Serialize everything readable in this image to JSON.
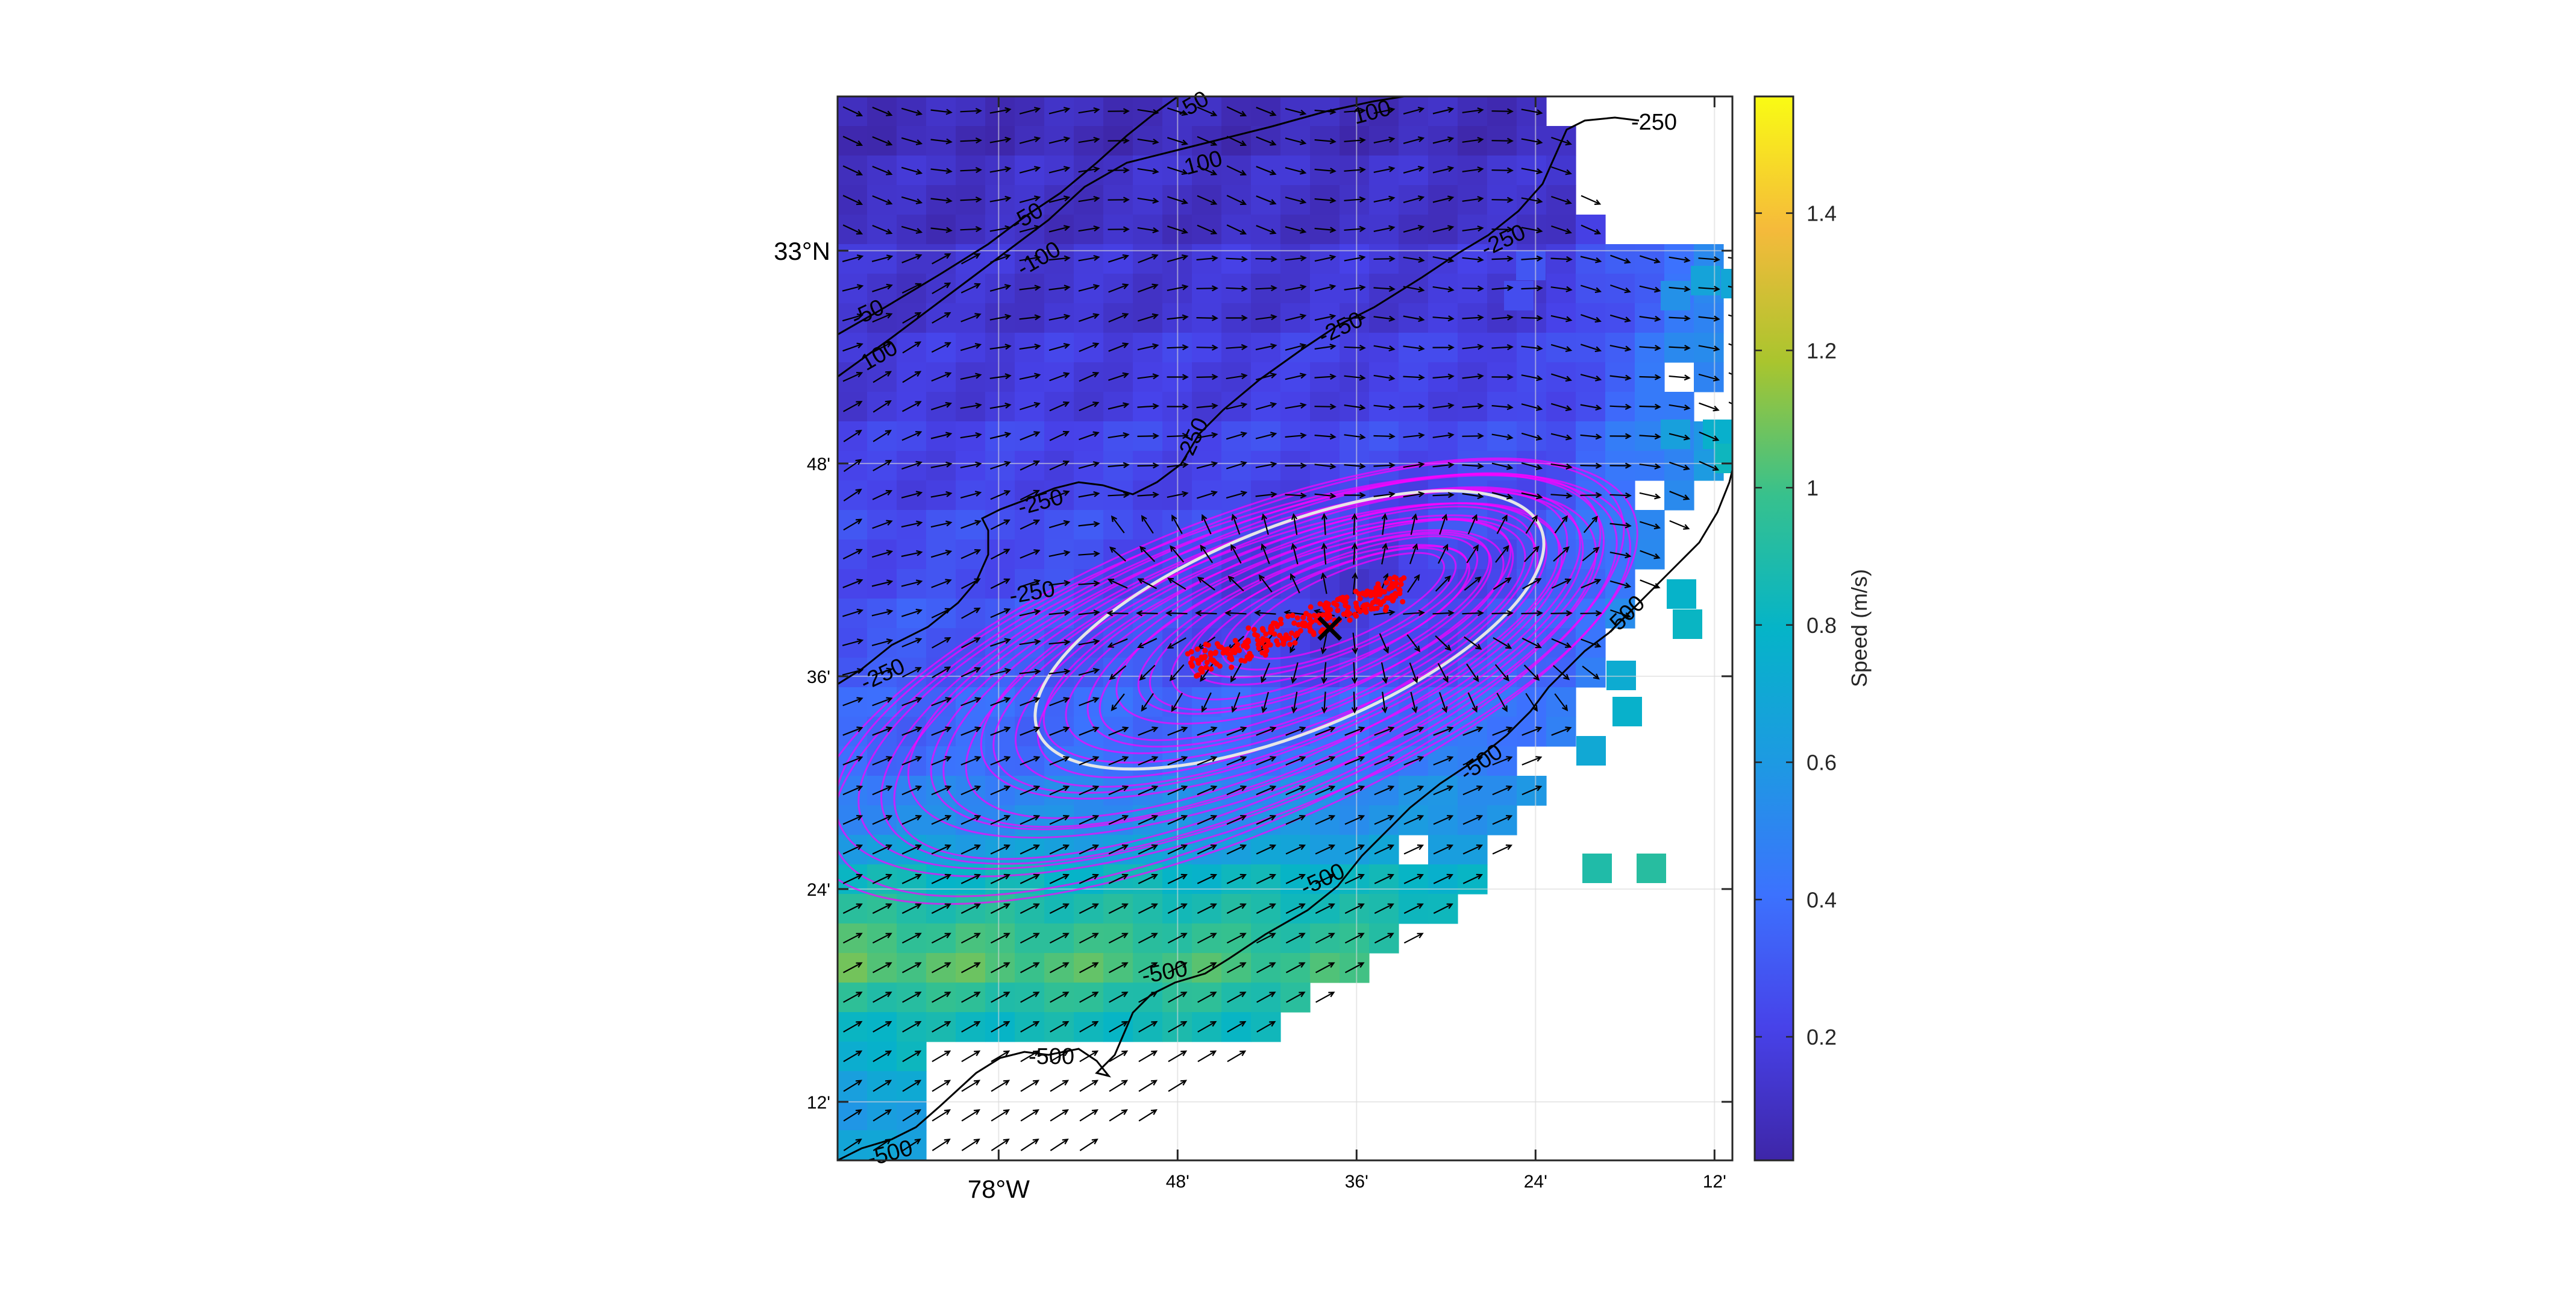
{
  "map": {
    "x_axis": {
      "ticks": [
        {
          "label": "78°W",
          "lon": -78.0,
          "major": true
        },
        {
          "label": "48'",
          "lon": -77.8,
          "major": false
        },
        {
          "label": "36'",
          "lon": -77.6,
          "major": false
        },
        {
          "label": "24'",
          "lon": -77.4,
          "major": false
        },
        {
          "label": "12'",
          "lon": -77.2,
          "major": false
        }
      ]
    },
    "y_axis": {
      "ticks": [
        {
          "label": "33°N",
          "lat": 33.0,
          "major": true
        },
        {
          "label": "48'",
          "lat": 32.8,
          "major": false
        },
        {
          "label": "36'",
          "lat": 32.6,
          "major": false
        },
        {
          "label": "24'",
          "lat": 32.4,
          "major": false
        },
        {
          "label": "12'",
          "lat": 32.2,
          "major": false
        }
      ]
    },
    "lon_range": [
      -78.18,
      -77.18
    ],
    "lat_range": [
      32.145,
      33.145
    ],
    "grid": true,
    "speed_field": {
      "colormap": "parula",
      "cell_size_deg": 0.0333,
      "description_values": "surface current speed (m/s); low in north, high in south-west"
    },
    "bathymetry_contours": [
      {
        "depth": -50,
        "labels": [
          "-50",
          "-50",
          "-50"
        ]
      },
      {
        "depth": -100,
        "labels": [
          "100",
          "100",
          "-100",
          "100"
        ]
      },
      {
        "depth": -250,
        "labels": [
          "-250",
          "-250",
          "-250",
          "-250",
          "-250",
          "-250",
          "-250"
        ]
      },
      {
        "depth": -500,
        "labels": [
          "-500",
          "-500",
          "-500",
          "-500",
          "-500",
          "-500"
        ]
      }
    ],
    "marker": {
      "type": "x",
      "lon": -77.63,
      "lat": 32.645,
      "color": "#000000"
    },
    "ellipses": {
      "color": "#ff00ff",
      "highlight_color": "#e6e6e6"
    },
    "particles": {
      "color": "#ff0000"
    }
  },
  "colorbar": {
    "label": "Speed (m/s)",
    "min": 0.02,
    "max": 1.57,
    "ticks": [
      {
        "value": 0.2,
        "label": "0.2"
      },
      {
        "value": 0.4,
        "label": "0.4"
      },
      {
        "value": 0.6,
        "label": "0.6"
      },
      {
        "value": 0.8,
        "label": "0.8"
      },
      {
        "value": 1.0,
        "label": "1"
      },
      {
        "value": 1.2,
        "label": "1.2"
      },
      {
        "value": 1.4,
        "label": "1.4"
      }
    ]
  }
}
